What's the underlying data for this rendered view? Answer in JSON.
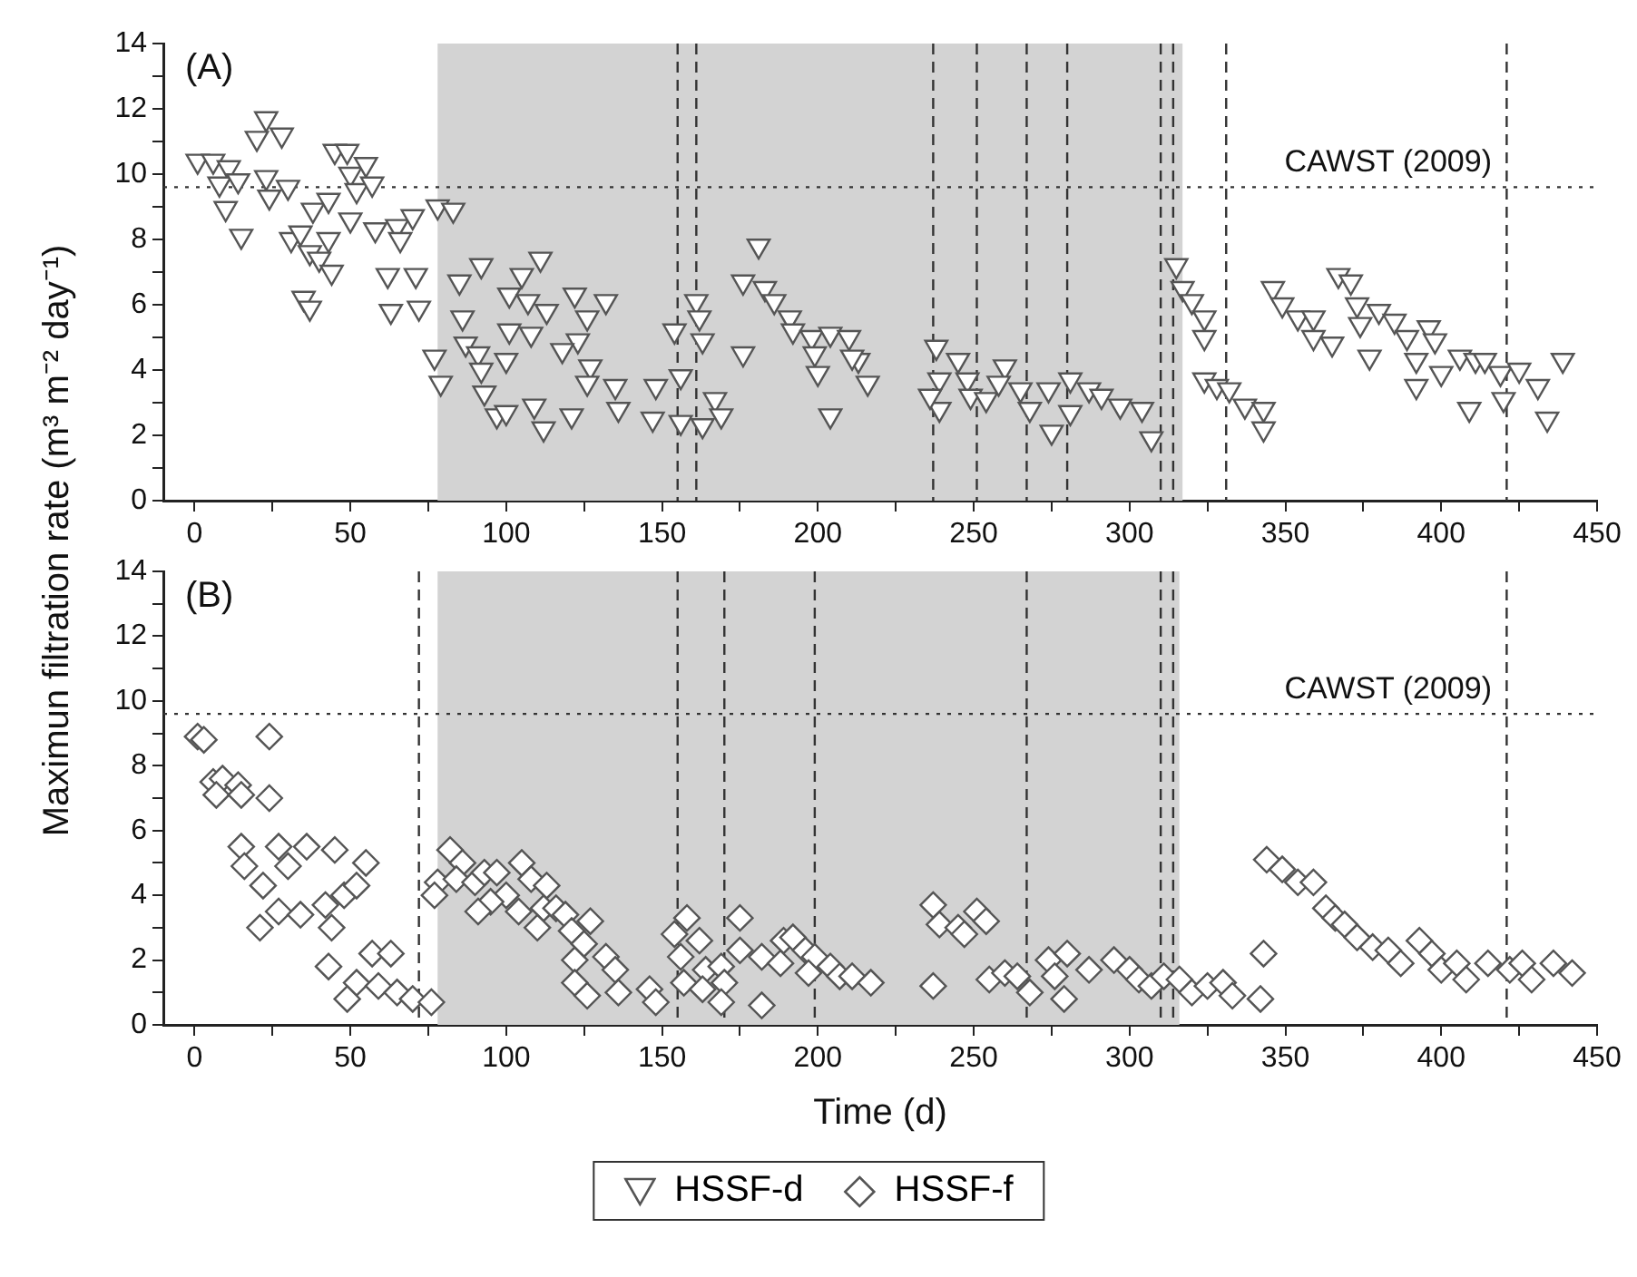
{
  "chart_data": [
    {
      "type": "scatter",
      "marker": "triangle",
      "legend": "bottom",
      "ylabel": "Maximun filtration rate (m³ m⁻² day⁻¹)",
      "annotations": [
        "(A)"
      ],
      "xlim": [
        -10,
        450
      ],
      "ylim": [
        0,
        14
      ],
      "xticks": [
        0,
        {
          "value": 25,
          "label": null
        },
        50,
        {
          "value": 75,
          "label": null
        },
        100,
        {
          "value": 125,
          "label": null
        },
        150,
        {
          "value": 175,
          "label": null
        },
        200,
        {
          "value": 225,
          "label": null
        },
        250,
        {
          "value": 275,
          "label": null
        },
        300,
        {
          "value": 325,
          "label": null
        },
        350,
        {
          "value": 375,
          "label": null
        },
        400,
        {
          "value": 425,
          "label": null
        },
        450
      ],
      "yticks": [
        0,
        {
          "value": 1,
          "label": null
        },
        2,
        {
          "value": 3,
          "label": null
        },
        4,
        {
          "value": 5,
          "label": null
        },
        6,
        {
          "value": 7,
          "label": null
        },
        8,
        {
          "value": 9,
          "label": null
        },
        10,
        {
          "value": 11,
          "label": null
        },
        12,
        {
          "value": 13,
          "label": null
        },
        14
      ],
      "bands": [
        {
          "axis": "x",
          "from": 78,
          "to": 317,
          "color": "#d3d3d3"
        }
      ],
      "ref_lines": [
        {
          "axis": "y",
          "value": 9.6,
          "label": "CAWST (2009)",
          "line_style": "dotted"
        },
        {
          "axis": "x",
          "value": 155,
          "label": null,
          "line_style": "dashed"
        },
        {
          "axis": "x",
          "value": 161,
          "label": null,
          "line_style": "dashed"
        },
        {
          "axis": "x",
          "value": 237,
          "label": null,
          "line_style": "dashed"
        },
        {
          "axis": "x",
          "value": 251,
          "label": null,
          "line_style": "dashed"
        },
        {
          "axis": "x",
          "value": 267,
          "label": null,
          "line_style": "dashed"
        },
        {
          "axis": "x",
          "value": 280,
          "label": null,
          "line_style": "dashed"
        },
        {
          "axis": "x",
          "value": 310,
          "label": null,
          "line_style": "dashed"
        },
        {
          "axis": "x",
          "value": 314,
          "label": null,
          "line_style": "dashed"
        },
        {
          "axis": "x",
          "value": 331,
          "label": null,
          "line_style": "dashed"
        },
        {
          "axis": "x",
          "value": 421,
          "label": null,
          "line_style": "dashed"
        }
      ],
      "series": [
        {
          "name": "HSSF-d",
          "color": "#555555",
          "x": [
            1,
            6,
            11,
            8,
            14,
            10,
            15,
            23,
            20,
            28,
            23,
            24,
            30,
            31,
            34,
            37,
            35,
            37,
            38,
            43,
            43,
            40,
            44,
            45,
            49,
            50,
            55,
            52,
            57,
            50,
            58,
            65,
            66,
            70,
            62,
            63,
            71,
            72,
            78,
            83,
            77,
            79,
            85,
            92,
            86,
            87,
            91,
            92,
            93,
            100,
            97,
            100,
            105,
            111,
            101,
            107,
            101,
            108,
            113,
            109,
            112,
            122,
            132,
            126,
            123,
            118,
            121,
            127,
            126,
            135,
            136,
            148,
            147,
            154,
            156,
            156,
            161,
            162,
            163,
            163,
            167,
            169,
            181,
            176,
            176,
            183,
            186,
            191,
            192,
            198,
            199,
            200,
            204,
            204,
            210,
            213,
            216,
            211,
            238,
            239,
            239,
            236,
            245,
            248,
            249,
            254,
            260,
            258,
            265,
            268,
            275,
            274,
            281,
            281,
            287,
            291,
            297,
            304,
            307,
            315,
            317,
            320,
            324,
            324,
            324,
            328,
            332,
            337,
            343,
            343,
            346,
            349,
            354,
            359,
            359,
            365,
            367,
            371,
            373,
            374,
            377,
            380,
            385,
            389,
            392,
            392,
            396,
            398,
            400,
            406,
            409,
            411,
            414,
            419,
            420,
            425,
            431,
            434,
            439
          ],
          "values": [
            10.4,
            10.4,
            10.2,
            9.7,
            9.8,
            8.95,
            8.1,
            11.7,
            11.1,
            11.2,
            9.9,
            9.3,
            9.6,
            8.0,
            8.2,
            7.6,
            6.2,
            5.9,
            8.9,
            9.2,
            8.0,
            7.4,
            7.0,
            10.7,
            10.7,
            10.0,
            10.3,
            9.5,
            9.7,
            8.6,
            8.3,
            8.4,
            8.0,
            8.7,
            6.9,
            5.8,
            6.9,
            5.9,
            9.0,
            8.9,
            4.4,
            3.6,
            6.7,
            7.2,
            5.6,
            4.8,
            4.5,
            4.0,
            3.3,
            4.3,
            2.6,
            2.7,
            6.9,
            7.4,
            6.3,
            6.1,
            5.2,
            5.1,
            5.8,
            2.9,
            2.2,
            6.3,
            6.1,
            5.6,
            4.9,
            4.6,
            2.6,
            4.1,
            3.6,
            3.5,
            2.8,
            3.5,
            2.5,
            5.2,
            3.8,
            2.4,
            6.1,
            5.6,
            4.9,
            2.3,
            3.1,
            2.6,
            7.8,
            6.7,
            4.5,
            6.5,
            6.1,
            5.6,
            5.2,
            5.0,
            4.5,
            3.9,
            2.6,
            5.1,
            5.0,
            4.3,
            3.6,
            4.4,
            4.7,
            3.7,
            2.8,
            3.2,
            4.3,
            3.7,
            3.2,
            3.1,
            4.1,
            3.6,
            3.4,
            2.8,
            2.1,
            3.4,
            3.7,
            2.7,
            3.4,
            3.2,
            2.9,
            2.8,
            1.9,
            7.2,
            6.5,
            6.1,
            5.6,
            5.0,
            3.7,
            3.5,
            3.4,
            2.9,
            2.8,
            2.2,
            6.5,
            6.0,
            5.6,
            5.6,
            5.0,
            4.8,
            6.9,
            6.7,
            6.0,
            5.4,
            4.4,
            5.8,
            5.5,
            5.0,
            4.3,
            3.5,
            5.3,
            4.9,
            3.9,
            4.4,
            2.8,
            4.3,
            4.3,
            3.9,
            3.1,
            4.0,
            3.5,
            2.5,
            4.3
          ]
        }
      ]
    },
    {
      "type": "scatter",
      "marker": "diamond",
      "legend": "bottom",
      "xlabel": "Time (d)",
      "annotations": [
        "(B)"
      ],
      "xlim": [
        -10,
        450
      ],
      "ylim": [
        0,
        14
      ],
      "xticks": [
        0,
        {
          "value": 25,
          "label": null
        },
        50,
        {
          "value": 75,
          "label": null
        },
        100,
        {
          "value": 125,
          "label": null
        },
        150,
        {
          "value": 175,
          "label": null
        },
        200,
        {
          "value": 225,
          "label": null
        },
        250,
        {
          "value": 275,
          "label": null
        },
        300,
        {
          "value": 325,
          "label": null
        },
        350,
        {
          "value": 375,
          "label": null
        },
        400,
        {
          "value": 425,
          "label": null
        },
        450
      ],
      "yticks": [
        0,
        {
          "value": 1,
          "label": null
        },
        2,
        {
          "value": 3,
          "label": null
        },
        4,
        {
          "value": 5,
          "label": null
        },
        6,
        {
          "value": 7,
          "label": null
        },
        8,
        {
          "value": 9,
          "label": null
        },
        10,
        {
          "value": 11,
          "label": null
        },
        12,
        {
          "value": 13,
          "label": null
        },
        14
      ],
      "bands": [
        {
          "axis": "x",
          "from": 78,
          "to": 316,
          "color": "#d3d3d3"
        }
      ],
      "ref_lines": [
        {
          "axis": "y",
          "value": 9.6,
          "label": "CAWST (2009)",
          "line_style": "dotted"
        },
        {
          "axis": "x",
          "value": 72,
          "label": null,
          "line_style": "dashed"
        },
        {
          "axis": "x",
          "value": 155,
          "label": null,
          "line_style": "dashed"
        },
        {
          "axis": "x",
          "value": 170,
          "label": null,
          "line_style": "dashed"
        },
        {
          "axis": "x",
          "value": 199,
          "label": null,
          "line_style": "dashed"
        },
        {
          "axis": "x",
          "value": 267,
          "label": null,
          "line_style": "dashed"
        },
        {
          "axis": "x",
          "value": 310,
          "label": null,
          "line_style": "dashed"
        },
        {
          "axis": "x",
          "value": 314,
          "label": null,
          "line_style": "dashed"
        },
        {
          "axis": "x",
          "value": 421,
          "label": null,
          "line_style": "dashed"
        }
      ],
      "series": [
        {
          "name": "HSSF-f",
          "color": "#555555",
          "x": [
            1,
            3,
            24,
            6,
            9,
            7,
            14,
            15,
            24,
            15,
            16,
            22,
            27,
            30,
            36,
            45,
            55,
            21,
            27,
            34,
            42,
            44,
            48,
            52,
            43,
            57,
            63,
            52,
            59,
            49,
            65,
            70,
            76,
            82,
            86,
            78,
            77,
            84,
            90,
            93,
            97,
            100,
            95,
            91,
            105,
            108,
            104,
            113,
            112,
            110,
            116,
            119,
            121,
            127,
            122,
            125,
            122,
            132,
            135,
            126,
            136,
            146,
            148,
            158,
            154,
            156,
            162,
            157,
            164,
            169,
            170,
            163,
            169,
            175,
            175,
            182,
            182,
            189,
            192,
            188,
            196,
            199,
            197,
            204,
            207,
            211,
            217,
            237,
            239,
            245,
            251,
            254,
            247,
            237,
            255,
            260,
            264,
            268,
            274,
            280,
            276,
            279,
            287,
            295,
            300,
            303,
            307,
            311,
            316,
            320,
            325,
            330,
            333,
            342,
            343,
            344,
            349,
            354,
            359,
            363,
            366,
            369,
            373,
            378,
            383,
            387,
            393,
            397,
            400,
            405,
            408,
            415,
            422,
            426,
            429,
            436,
            442
          ],
          "values": [
            8.9,
            8.8,
            8.9,
            7.5,
            7.6,
            7.1,
            7.4,
            7.1,
            7.0,
            5.5,
            4.9,
            4.3,
            5.5,
            4.9,
            5.5,
            5.4,
            5.0,
            3.0,
            3.5,
            3.4,
            3.7,
            3.0,
            4.0,
            4.3,
            1.8,
            2.2,
            2.2,
            1.3,
            1.2,
            0.8,
            1.0,
            0.8,
            0.7,
            5.4,
            5.0,
            4.4,
            4.0,
            4.5,
            4.4,
            4.7,
            4.7,
            4.0,
            3.8,
            3.5,
            5.0,
            4.5,
            3.5,
            4.3,
            3.6,
            3.0,
            3.6,
            3.4,
            2.9,
            3.2,
            2.0,
            2.5,
            1.3,
            2.1,
            1.7,
            0.9,
            1.0,
            1.1,
            0.7,
            3.3,
            2.8,
            2.1,
            2.6,
            1.3,
            1.7,
            1.8,
            1.3,
            1.1,
            0.7,
            3.3,
            2.3,
            2.1,
            0.6,
            2.6,
            2.7,
            1.9,
            2.3,
            2.1,
            1.6,
            1.8,
            1.5,
            1.5,
            1.3,
            3.7,
            3.1,
            3.0,
            3.5,
            3.2,
            2.8,
            1.2,
            1.4,
            1.6,
            1.5,
            1.0,
            2.0,
            2.2,
            1.5,
            0.8,
            1.7,
            2.0,
            1.7,
            1.4,
            1.2,
            1.5,
            1.4,
            1.0,
            1.2,
            1.3,
            0.9,
            0.8,
            2.2,
            5.1,
            4.8,
            4.4,
            4.4,
            3.6,
            3.3,
            3.1,
            2.7,
            2.4,
            2.3,
            1.9,
            2.6,
            2.2,
            1.7,
            1.9,
            1.4,
            1.9,
            1.7,
            1.9,
            1.4,
            1.9,
            1.6
          ]
        }
      ]
    }
  ]
}
